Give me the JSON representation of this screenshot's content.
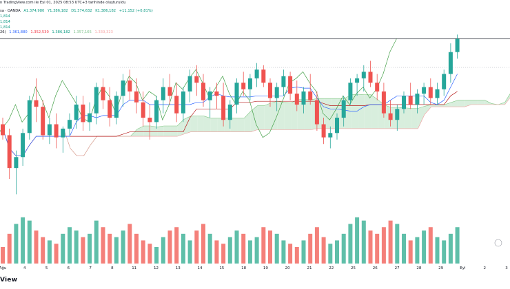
{
  "header": {
    "source_line": "n TradingView.com ile Eyl 01, 2025 08:53 UTC+3 tarihinde oluşturuldu",
    "symbol_line": "sa · OANDA",
    "ohlc": {
      "open": "A1.374,980",
      "high": "Y1.386,182",
      "low": "D1.374,632",
      "close": "K1.386,182",
      "change": "+11,152 (+0,81%)"
    },
    "ind_vals": [
      "1,814",
      "1,814",
      "1,814"
    ],
    "ichimoku_prefix": "26)",
    "ichimoku_vals": [
      "1.361,880",
      "1.352,530",
      "1.386,182",
      "1.357,165",
      "1.339,323"
    ]
  },
  "watermark": "View",
  "x_labels": [
    "Ağu",
    "4",
    "5",
    "6",
    "7",
    "8",
    "11",
    "12",
    "13",
    "14",
    "15",
    "18",
    "19",
    "20",
    "21",
    "22",
    "25",
    "26",
    "27",
    "28",
    "29",
    "Eyl",
    "2",
    "3"
  ],
  "colors": {
    "up": "#26a69a",
    "down": "#ef5350",
    "tenkan": "#2962ff",
    "kijun": "#b71c1c",
    "chikou": "#43a047",
    "cloud_bear": "#f8d6d3",
    "cloud_bull": "#d8eedd",
    "span_b": "#ef9a9a",
    "span_a": "#81c784"
  },
  "chart_data": {
    "type": "candlestick",
    "title": "",
    "xlabel": "",
    "ylabel": "",
    "x_tick_labels": [
      "Ağu",
      "4",
      "5",
      "6",
      "7",
      "8",
      "11",
      "12",
      "13",
      "14",
      "15",
      "18",
      "19",
      "20",
      "21",
      "22",
      "25",
      "26",
      "27",
      "28",
      "29",
      "Eyl",
      "2",
      "3"
    ],
    "price_range": [
      1300,
      1395
    ],
    "horizontal_levels": [
      1386.2,
      1373
    ],
    "candles": [
      [
        1347,
        1350,
        1340,
        1342
      ],
      [
        1342,
        1345,
        1322,
        1327
      ],
      [
        1327,
        1335,
        1315,
        1332
      ],
      [
        1332,
        1345,
        1328,
        1343
      ],
      [
        1343,
        1360,
        1340,
        1358
      ],
      [
        1358,
        1368,
        1348,
        1355
      ],
      [
        1355,
        1358,
        1340,
        1342
      ],
      [
        1342,
        1350,
        1338,
        1347
      ],
      [
        1347,
        1352,
        1336,
        1341
      ],
      [
        1341,
        1346,
        1334,
        1345
      ],
      [
        1345,
        1352,
        1342,
        1349
      ],
      [
        1349,
        1360,
        1345,
        1356
      ],
      [
        1356,
        1360,
        1344,
        1348
      ],
      [
        1348,
        1357,
        1344,
        1352
      ],
      [
        1352,
        1366,
        1347,
        1364
      ],
      [
        1364,
        1368,
        1354,
        1358
      ],
      [
        1358,
        1364,
        1346,
        1350
      ],
      [
        1350,
        1362,
        1347,
        1360
      ],
      [
        1360,
        1370,
        1355,
        1367
      ],
      [
        1367,
        1372,
        1358,
        1362
      ],
      [
        1362,
        1368,
        1352,
        1357
      ],
      [
        1357,
        1362,
        1346,
        1350
      ],
      [
        1350,
        1356,
        1340,
        1348
      ],
      [
        1348,
        1360,
        1345,
        1358
      ],
      [
        1358,
        1368,
        1352,
        1364
      ],
      [
        1364,
        1370,
        1356,
        1360
      ],
      [
        1360,
        1366,
        1348,
        1352
      ],
      [
        1352,
        1364,
        1348,
        1362
      ],
      [
        1362,
        1372,
        1357,
        1369
      ],
      [
        1369,
        1374,
        1360,
        1366
      ],
      [
        1366,
        1370,
        1355,
        1358
      ],
      [
        1358,
        1364,
        1350,
        1362
      ],
      [
        1362,
        1366,
        1354,
        1360
      ],
      [
        1360,
        1366,
        1346,
        1349
      ],
      [
        1349,
        1358,
        1345,
        1356
      ],
      [
        1356,
        1368,
        1352,
        1366
      ],
      [
        1366,
        1371,
        1360,
        1363
      ],
      [
        1363,
        1370,
        1358,
        1368
      ],
      [
        1368,
        1375,
        1364,
        1372
      ],
      [
        1372,
        1374,
        1364,
        1366
      ],
      [
        1366,
        1368,
        1355,
        1359
      ],
      [
        1359,
        1366,
        1353,
        1364
      ],
      [
        1364,
        1372,
        1360,
        1369
      ],
      [
        1369,
        1371,
        1358,
        1361
      ],
      [
        1361,
        1367,
        1353,
        1356
      ],
      [
        1356,
        1364,
        1352,
        1362
      ],
      [
        1362,
        1370,
        1356,
        1358
      ],
      [
        1358,
        1362,
        1344,
        1347
      ],
      [
        1347,
        1350,
        1338,
        1341
      ],
      [
        1341,
        1346,
        1336,
        1343
      ],
      [
        1343,
        1352,
        1340,
        1350
      ],
      [
        1350,
        1360,
        1346,
        1358
      ],
      [
        1358,
        1368,
        1356,
        1366
      ],
      [
        1366,
        1370,
        1360,
        1368
      ],
      [
        1368,
        1374,
        1362,
        1371
      ],
      [
        1371,
        1376,
        1364,
        1366
      ],
      [
        1366,
        1370,
        1358,
        1362
      ],
      [
        1362,
        1366,
        1350,
        1352
      ],
      [
        1352,
        1358,
        1346,
        1349
      ],
      [
        1349,
        1356,
        1344,
        1354
      ],
      [
        1354,
        1362,
        1352,
        1360
      ],
      [
        1360,
        1366,
        1354,
        1356
      ],
      [
        1356,
        1363,
        1352,
        1361
      ],
      [
        1361,
        1366,
        1356,
        1364
      ],
      [
        1364,
        1368,
        1356,
        1359
      ],
      [
        1359,
        1366,
        1356,
        1363
      ],
      [
        1363,
        1372,
        1360,
        1370
      ],
      [
        1370,
        1384,
        1366,
        1380
      ],
      [
        1380,
        1388,
        1377,
        1386
      ]
    ],
    "volume": [
      10,
      18,
      24,
      28,
      26,
      20,
      16,
      14,
      12,
      18,
      22,
      20,
      16,
      18,
      26,
      22,
      18,
      16,
      20,
      24,
      18,
      14,
      12,
      10,
      16,
      20,
      22,
      18,
      14,
      20,
      24,
      18,
      14,
      12,
      16,
      20,
      18,
      14,
      16,
      22,
      20,
      18,
      14,
      12,
      10,
      14,
      18,
      22,
      16,
      12,
      14,
      18,
      24,
      28,
      26,
      20,
      18,
      22,
      26,
      24,
      18,
      14,
      16,
      20,
      22,
      16,
      14,
      18,
      22
    ],
    "volume_up": [
      false,
      false,
      true,
      true,
      true,
      false,
      false,
      true,
      false,
      true,
      true,
      true,
      false,
      true,
      true,
      false,
      false,
      true,
      true,
      false,
      false,
      false,
      false,
      true,
      true,
      false,
      false,
      true,
      true,
      false,
      false,
      true,
      false,
      false,
      true,
      true,
      false,
      true,
      true,
      false,
      false,
      true,
      true,
      false,
      false,
      true,
      false,
      false,
      false,
      true,
      true,
      true,
      true,
      true,
      true,
      false,
      false,
      false,
      false,
      true,
      true,
      false,
      true,
      true,
      false,
      true,
      true,
      true,
      true
    ],
    "series": []
  }
}
